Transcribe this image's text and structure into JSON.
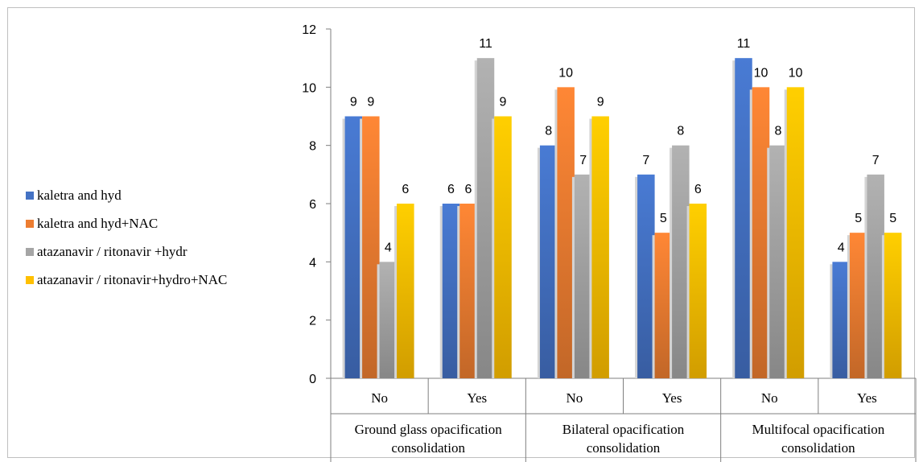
{
  "chart_data": {
    "type": "bar",
    "groups": [
      "Ground glass opacification consolidation",
      "Bilateral opacification consolidation",
      "Multifocal opacification consolidation"
    ],
    "group_lines": [
      [
        "Ground glass opacification",
        "consolidation"
      ],
      [
        "Bilateral opacification",
        "consolidation"
      ],
      [
        "Multifocal opacification",
        "consolidation"
      ]
    ],
    "subcategories": [
      "No",
      "Yes",
      "No",
      "Yes",
      "No",
      "Yes"
    ],
    "series": [
      {
        "name": "kaletra and hyd",
        "color": "#4472C4",
        "values": [
          9,
          6,
          8,
          7,
          11,
          4
        ]
      },
      {
        "name": "kaletra and hyd+NAC",
        "color": "#ED7D31",
        "values": [
          9,
          6,
          10,
          5,
          10,
          5
        ]
      },
      {
        "name": "atazanavir / ritonavir +hydr",
        "color": "#A5A5A5",
        "values": [
          4,
          11,
          7,
          8,
          8,
          7
        ]
      },
      {
        "name": "atazanavir / ritonavir+hydro+NAC",
        "color": "#FFC000",
        "values": [
          6,
          9,
          9,
          6,
          10,
          5
        ]
      }
    ],
    "y_ticks": [
      "0",
      "2",
      "4",
      "6",
      "8",
      "10",
      "12"
    ],
    "ylim": [
      0,
      12
    ],
    "legend_position": "left",
    "grid": false,
    "data_labels": true
  }
}
